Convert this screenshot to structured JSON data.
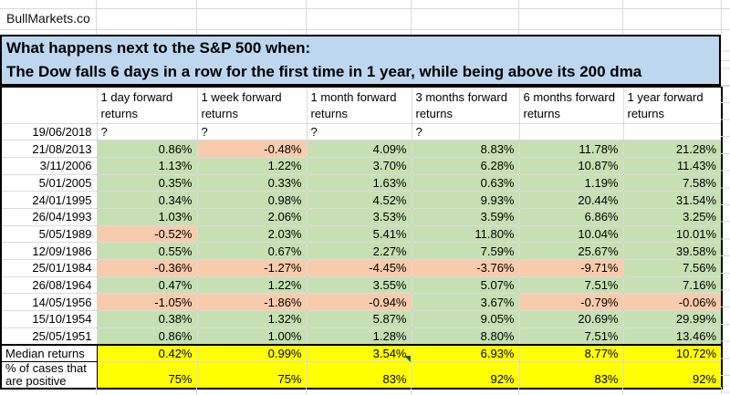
{
  "brand": "BullMarkets.co",
  "title": {
    "line1": "What happens next to the S&P 500 when:",
    "line2": "The Dow falls 6 days in a row for the first time in 1 year, while being above its 200 dma"
  },
  "colors": {
    "title_bg": "#BDD7EE",
    "positive_fill": "#C6E0B4",
    "negative_fill": "#F8CBAD",
    "summary_fill": "#FFFF00",
    "border": "#000000",
    "gridline": "#d9d9d9"
  },
  "table": {
    "columns": [
      "1 day forward returns",
      "1 week forward returns",
      "1 month forward returns",
      "3 months forward returns",
      "6 months forward returns",
      "1 year forward returns"
    ],
    "pending_row": {
      "date": "19/06/2018",
      "values": [
        "?",
        "?",
        "?",
        "?",
        "",
        ""
      ]
    },
    "rows": [
      {
        "date": "21/08/2013",
        "values": [
          "0.86%",
          "-0.48%",
          "4.09%",
          "8.83%",
          "11.78%",
          "21.28%"
        ]
      },
      {
        "date": "3/11/2006",
        "values": [
          "1.13%",
          "1.22%",
          "3.70%",
          "6.28%",
          "10.87%",
          "11.43%"
        ]
      },
      {
        "date": "5/01/2005",
        "values": [
          "0.35%",
          "0.33%",
          "1.63%",
          "0.63%",
          "1.19%",
          "7.58%"
        ]
      },
      {
        "date": "24/01/1995",
        "values": [
          "0.34%",
          "0.98%",
          "4.52%",
          "9.93%",
          "20.44%",
          "31.54%"
        ]
      },
      {
        "date": "26/04/1993",
        "values": [
          "1.03%",
          "2.06%",
          "3.53%",
          "3.59%",
          "6.86%",
          "3.25%"
        ]
      },
      {
        "date": "5/05/1989",
        "values": [
          "-0.52%",
          "2.03%",
          "5.41%",
          "11.80%",
          "10.04%",
          "10.01%"
        ]
      },
      {
        "date": "12/09/1986",
        "values": [
          "0.55%",
          "0.67%",
          "2.27%",
          "7.59%",
          "25.67%",
          "39.58%"
        ]
      },
      {
        "date": "25/01/1984",
        "values": [
          "-0.36%",
          "-1.27%",
          "-4.45%",
          "-3.76%",
          "-9.71%",
          "7.56%"
        ]
      },
      {
        "date": "26/08/1964",
        "values": [
          "0.47%",
          "1.22%",
          "3.55%",
          "5.07%",
          "7.51%",
          "7.16%"
        ]
      },
      {
        "date": "14/05/1956",
        "values": [
          "-1.05%",
          "-1.86%",
          "-0.94%",
          "3.67%",
          "-0.79%",
          "-0.06%"
        ]
      },
      {
        "date": "15/10/1954",
        "values": [
          "0.38%",
          "1.32%",
          "5.87%",
          "9.05%",
          "20.69%",
          "29.99%"
        ]
      },
      {
        "date": "25/05/1951",
        "values": [
          "0.86%",
          "1.00%",
          "1.28%",
          "8.80%",
          "7.51%",
          "13.46%"
        ]
      }
    ],
    "summary": {
      "median_label": "Median returns",
      "median": [
        "0.42%",
        "0.99%",
        "3.54%",
        "6.93%",
        "8.77%",
        "10.72%"
      ],
      "pct_label_line1": "% of cases that",
      "pct_label_line2": "are positive",
      "pct": [
        "75%",
        "75%",
        "83%",
        "92%",
        "83%",
        "92%"
      ]
    }
  }
}
